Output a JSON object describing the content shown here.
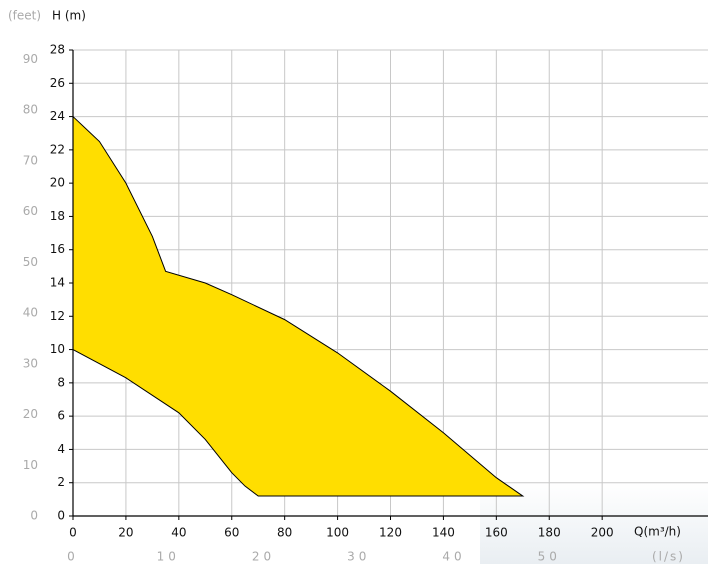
{
  "chart_data": {
    "type": "area",
    "y_label": "H (m)",
    "y2_label": "(feet)",
    "x_label": "Q(m³/h)",
    "x2_label": "(l/s)",
    "xlim": [
      0,
      240
    ],
    "xticks": [
      0,
      20,
      40,
      60,
      80,
      100,
      120,
      140,
      160,
      180,
      200
    ],
    "x2lim": [
      0,
      66.67
    ],
    "x2ticks": [
      0,
      10,
      20,
      30,
      40,
      50
    ],
    "ylim": [
      0,
      28
    ],
    "yticks": [
      0,
      2,
      4,
      6,
      8,
      10,
      12,
      14,
      16,
      18,
      20,
      22,
      24,
      26,
      28
    ],
    "y2lim": [
      0,
      91.86
    ],
    "y2ticks": [
      0,
      10,
      20,
      30,
      40,
      50,
      60,
      70,
      80,
      90
    ],
    "grid": true,
    "series": [
      {
        "color": "#ffde00",
        "x": [
          0,
          10,
          20,
          30,
          35,
          50,
          60,
          80,
          100,
          120,
          140,
          160,
          170,
          70,
          65,
          60,
          55,
          50,
          40,
          20,
          0
        ],
        "values": [
          24,
          22.5,
          20,
          16.8,
          14.7,
          14,
          13.3,
          11.8,
          9.8,
          7.5,
          5,
          2.3,
          1.2,
          1.2,
          1.8,
          2.6,
          3.6,
          4.6,
          6.2,
          8.3,
          10
        ]
      }
    ]
  }
}
